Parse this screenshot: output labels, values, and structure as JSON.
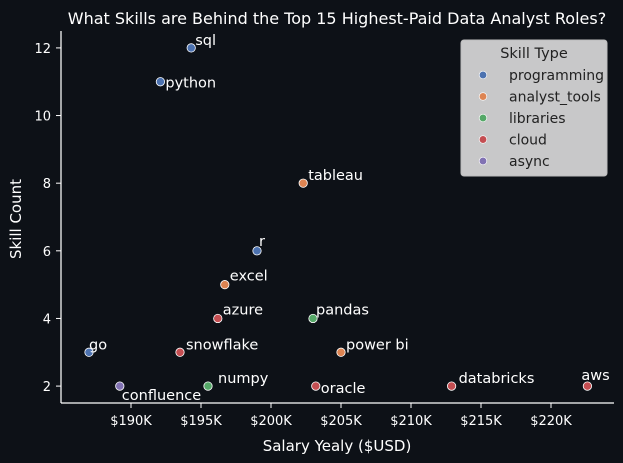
{
  "chart_data": {
    "type": "scatter",
    "title": "What Skills are Behind the Top 15 Highest-Paid Data Analyst Roles?",
    "xlabel": "Salary Yealy ($USD)",
    "ylabel": "Skill Count",
    "xlim": [
      185000,
      224500
    ],
    "ylim": [
      1.5,
      12.5
    ],
    "x_ticks": [
      190000,
      195000,
      200000,
      205000,
      210000,
      215000,
      220000
    ],
    "x_tick_labels": [
      "$190K",
      "$195K",
      "$200K",
      "$205K",
      "$210K",
      "$215K",
      "$220K"
    ],
    "y_ticks": [
      2,
      4,
      6,
      8,
      10,
      12
    ],
    "y_tick_labels": [
      "2",
      "4",
      "6",
      "8",
      "10",
      "12"
    ],
    "grid": false,
    "legend": {
      "title": "Skill Type",
      "placement": "top-right",
      "entries": [
        {
          "name": "programming",
          "color": "#4c72b0"
        },
        {
          "name": "analyst_tools",
          "color": "#dd8452"
        },
        {
          "name": "libraries",
          "color": "#55a868"
        },
        {
          "name": "cloud",
          "color": "#c44e52"
        },
        {
          "name": "async",
          "color": "#8172b3"
        }
      ]
    },
    "points": [
      {
        "label": "sql",
        "x": 194300,
        "y": 12,
        "type": "programming"
      },
      {
        "label": "python",
        "x": 192100,
        "y": 11,
        "type": "programming"
      },
      {
        "label": "tableau",
        "x": 202300,
        "y": 8,
        "type": "analyst_tools"
      },
      {
        "label": "r",
        "x": 199000,
        "y": 6,
        "type": "programming"
      },
      {
        "label": "excel",
        "x": 196700,
        "y": 5,
        "type": "analyst_tools"
      },
      {
        "label": "azure",
        "x": 196200,
        "y": 4,
        "type": "cloud"
      },
      {
        "label": "pandas",
        "x": 203000,
        "y": 4,
        "type": "libraries"
      },
      {
        "label": "go",
        "x": 187000,
        "y": 3,
        "type": "programming"
      },
      {
        "label": "snowflake",
        "x": 193500,
        "y": 3,
        "type": "cloud"
      },
      {
        "label": "power bi",
        "x": 205000,
        "y": 3,
        "type": "analyst_tools"
      },
      {
        "label": "confluence",
        "x": 189200,
        "y": 2,
        "type": "async"
      },
      {
        "label": "numpy",
        "x": 195500,
        "y": 2,
        "type": "libraries"
      },
      {
        "label": "oracle",
        "x": 203200,
        "y": 2,
        "type": "cloud"
      },
      {
        "label": "databricks",
        "x": 212900,
        "y": 2,
        "type": "cloud"
      },
      {
        "label": "aws",
        "x": 222600,
        "y": 2,
        "type": "cloud"
      }
    ]
  }
}
